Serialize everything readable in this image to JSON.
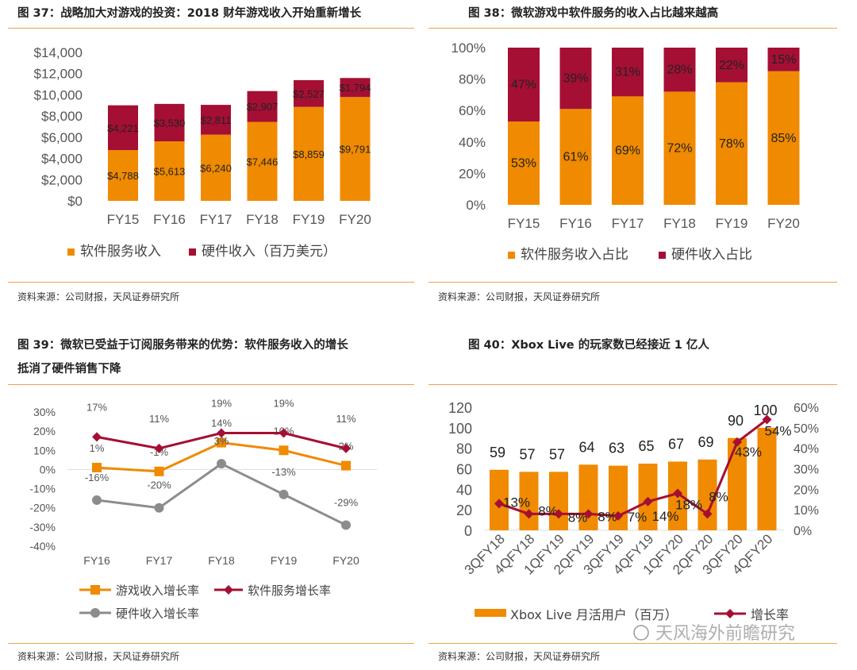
{
  "colors": {
    "orange": "#f08a00",
    "crimson": "#a50f34",
    "gray": "#8c8c8c",
    "rule": "#f0a050"
  },
  "source": "资料来源：公司财报，天风证券研究所",
  "watermark": "天风海外前瞻研究",
  "chart_data": [
    {
      "id": "c37",
      "type": "bar",
      "stacked": true,
      "title": "图 37：战略加大对游戏的投资：2018 财年游戏收入开始重新增长",
      "categories": [
        "FY15",
        "FY16",
        "FY17",
        "FY18",
        "FY19",
        "FY20"
      ],
      "ylim": [
        0,
        14000
      ],
      "yticks": [
        "$0",
        "$2,000",
        "$4,000",
        "$6,000",
        "$8,000",
        "$10,000",
        "$12,000",
        "$14,000"
      ],
      "series": [
        {
          "name": "软件服务收入",
          "values": [
            4788,
            5613,
            6240,
            7446,
            8859,
            9791
          ],
          "labels": [
            "$4,788",
            "$5,613",
            "$6,240",
            "$7,446",
            "$8,859",
            "$9,791"
          ]
        },
        {
          "name": "硬件收入（百万美元）",
          "values": [
            4221,
            3530,
            2811,
            2907,
            2527,
            1794
          ],
          "labels": [
            "$4,221",
            "$3,530",
            "$2,811",
            "$2,907",
            "$2,527",
            "$1,794"
          ]
        }
      ]
    },
    {
      "id": "c38",
      "type": "bar",
      "stacked": true,
      "title": "图 38：微软游戏中软件服务的收入占比越来越高",
      "categories": [
        "FY15",
        "FY16",
        "FY17",
        "FY18",
        "FY19",
        "FY20"
      ],
      "ylim": [
        0,
        100
      ],
      "yticks": [
        "0%",
        "20%",
        "40%",
        "60%",
        "80%",
        "100%"
      ],
      "series": [
        {
          "name": "软件服务收入占比",
          "values": [
            53,
            61,
            69,
            72,
            78,
            85
          ],
          "labels": [
            "53%",
            "61%",
            "69%",
            "72%",
            "78%",
            "85%"
          ]
        },
        {
          "name": "硬件收入占比",
          "values": [
            47,
            39,
            31,
            28,
            22,
            15
          ],
          "labels": [
            "47%",
            "39%",
            "31%",
            "28%",
            "22%",
            "15%"
          ]
        }
      ]
    },
    {
      "id": "c39",
      "type": "line",
      "title": "图 39：微软已受益于订阅服务带来的优势：软件服务收入的增长抵消了硬件销售下降",
      "title_lines": [
        "图 39：微软已受益于订阅服务带来的优势：软件服务收入的增长",
        "抵消了硬件销售下降"
      ],
      "categories": [
        "FY16",
        "FY17",
        "FY18",
        "FY19",
        "FY20"
      ],
      "ylim": [
        -40,
        30
      ],
      "yticks": [
        "-40%",
        "-30%",
        "-20%",
        "-10%",
        "0%",
        "10%",
        "20%",
        "30%"
      ],
      "series": [
        {
          "name": "游戏收入增长率",
          "values": [
            1,
            -1,
            14,
            10,
            2
          ],
          "labels": [
            "1%",
            "-1%",
            "14%",
            "10%",
            "2%"
          ]
        },
        {
          "name": "软件服务增长率",
          "values": [
            17,
            11,
            19,
            19,
            11
          ],
          "labels": [
            "17%",
            "11%",
            "19%",
            "19%",
            "11%"
          ]
        },
        {
          "name": "硬件收入增长率",
          "values": [
            -16,
            -20,
            3,
            -13,
            -29
          ],
          "labels": [
            "-16%",
            "-20%",
            "3%",
            "-13%",
            "-29%"
          ]
        }
      ]
    },
    {
      "id": "c40",
      "type": "bar+line",
      "title": "图 40：Xbox Live 的玩家数已经接近 1 亿人",
      "categories": [
        "3QFY18",
        "4QFY18",
        "1QFY19",
        "2QFY19",
        "3QFY19",
        "4QFY19",
        "1QFY20",
        "2QFY20",
        "3QFY20",
        "4QFY20"
      ],
      "ylim": [
        0,
        120
      ],
      "yticks": [
        "0",
        "20",
        "40",
        "60",
        "80",
        "100",
        "120"
      ],
      "y2lim": [
        0,
        60
      ],
      "y2ticks": [
        "0%",
        "10%",
        "20%",
        "30%",
        "40%",
        "50%",
        "60%"
      ],
      "series": [
        {
          "name": "Xbox Live 月活用户（百万）",
          "values": [
            59,
            57,
            57,
            64,
            63,
            65,
            67,
            69,
            90,
            100
          ],
          "labels": [
            "59",
            "57",
            "57",
            "64",
            "63",
            "65",
            "67",
            "69",
            "90",
            "100"
          ]
        },
        {
          "name": "增长率",
          "values": [
            13,
            8,
            8,
            8,
            7,
            14,
            18,
            8,
            43,
            54
          ],
          "labels": [
            "13%",
            "8%",
            "8%",
            "8%",
            "7%",
            "14%",
            "18%",
            "8%",
            "43%",
            "54%"
          ]
        }
      ]
    }
  ]
}
